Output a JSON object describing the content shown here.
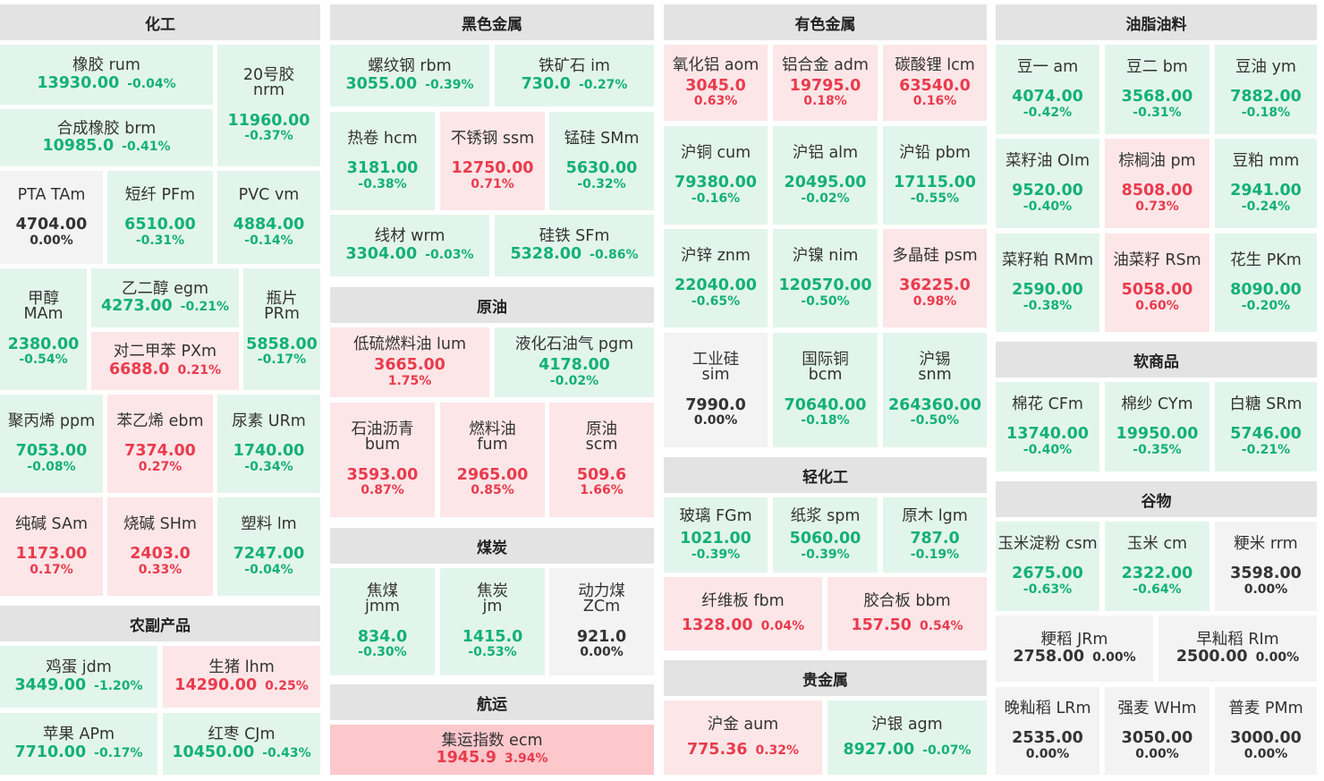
{
  "colors": {
    "up_bg": "#fde6e8",
    "down_bg": "#e2f5ec",
    "flat_bg": "#f3f3f3",
    "hot_bg": "#fcc8cc",
    "up_text": "#e93b4d",
    "down_text": "#13b079",
    "header_bg": "#e3e3e3"
  },
  "sections": {
    "chemical": "化工",
    "ferrous": "黑色金属",
    "nonferrous": "有色金属",
    "oils": "油脂油料",
    "agri": "农副产品",
    "crude": "原油",
    "coal": "煤炭",
    "shipping": "航运",
    "lightchem": "轻化工",
    "softs": "软商品",
    "grains": "谷物",
    "precious": "贵金属"
  },
  "t": {
    "rum": {
      "name": "橡胶 rum",
      "price": "13930.00",
      "change": "-0.04%"
    },
    "nrm": {
      "line1": "20号胶",
      "line2": "nrm",
      "price": "11960.00",
      "change": "-0.37%"
    },
    "brm": {
      "name": "合成橡胶 brm",
      "price": "10985.0",
      "change": "-0.41%"
    },
    "tam": {
      "name": "PTA TAm",
      "price": "4704.00",
      "change": "0.00%"
    },
    "pfm": {
      "name": "短纤 PFm",
      "price": "6510.00",
      "change": "-0.31%"
    },
    "vm": {
      "name": "PVC vm",
      "price": "4884.00",
      "change": "-0.14%"
    },
    "mam": {
      "line1": "甲醇",
      "line2": "MAm",
      "price": "2380.00",
      "change": "-0.54%"
    },
    "egm": {
      "name": "乙二醇 egm",
      "price": "4273.00",
      "change": "-0.21%"
    },
    "prm": {
      "line1": "瓶片",
      "line2": "PRm",
      "price": "5858.00",
      "change": "-0.17%"
    },
    "pxm": {
      "name": "对二甲苯 PXm",
      "price": "6688.0",
      "change": "0.21%"
    },
    "ppm": {
      "name": "聚丙烯 ppm",
      "price": "7053.00",
      "change": "-0.08%"
    },
    "ebm": {
      "name": "苯乙烯 ebm",
      "price": "7374.00",
      "change": "0.27%"
    },
    "urm": {
      "name": "尿素 URm",
      "price": "1740.00",
      "change": "-0.34%"
    },
    "sam": {
      "name": "纯碱 SAm",
      "price": "1173.00",
      "change": "0.17%"
    },
    "shm": {
      "name": "烧碱 SHm",
      "price": "2403.0",
      "change": "0.33%"
    },
    "lm": {
      "name": "塑料 lm",
      "price": "7247.00",
      "change": "-0.04%"
    },
    "jdm": {
      "name": "鸡蛋 jdm",
      "price": "3449.00",
      "change": "-1.20%"
    },
    "lhm": {
      "name": "生猪 lhm",
      "price": "14290.00",
      "change": "0.25%"
    },
    "apm": {
      "name": "苹果 APm",
      "price": "7710.00",
      "change": "-0.17%"
    },
    "cjm": {
      "name": "红枣 CJm",
      "price": "10450.00",
      "change": "-0.43%"
    },
    "rbm": {
      "name": "螺纹钢 rbm",
      "price": "3055.00",
      "change": "-0.39%"
    },
    "im": {
      "name": "铁矿石 im",
      "price": "730.0",
      "change": "-0.27%"
    },
    "hcm": {
      "name": "热卷 hcm",
      "price": "3181.00",
      "change": "-0.38%"
    },
    "ssm": {
      "name": "不锈钢 ssm",
      "price": "12750.00",
      "change": "0.71%"
    },
    "smm": {
      "name": "锰硅 SMm",
      "price": "5630.00",
      "change": "-0.32%"
    },
    "wrm": {
      "name": "线材 wrm",
      "price": "3304.00",
      "change": "-0.03%"
    },
    "sfm": {
      "name": "硅铁 SFm",
      "price": "5328.00",
      "change": "-0.86%"
    },
    "lum": {
      "name": "低硫燃料油 lum",
      "price": "3665.00",
      "change": "1.75%"
    },
    "pgm": {
      "name": "液化石油气 pgm",
      "price": "4178.00",
      "change": "-0.02%"
    },
    "bum": {
      "line1": "石油沥青",
      "line2": "bum",
      "price": "3593.00",
      "change": "0.87%"
    },
    "fum": {
      "line1": "燃料油",
      "line2": "fum",
      "price": "2965.00",
      "change": "0.85%"
    },
    "scm": {
      "line1": "原油",
      "line2": "scm",
      "price": "509.6",
      "change": "1.66%"
    },
    "jmm": {
      "line1": "焦煤",
      "line2": "jmm",
      "price": "834.0",
      "change": "-0.30%"
    },
    "jm": {
      "line1": "焦炭",
      "line2": "jm",
      "price": "1415.0",
      "change": "-0.53%"
    },
    "zcm": {
      "line1": "动力煤",
      "line2": "ZCm",
      "price": "921.0",
      "change": "0.00%"
    },
    "ecm": {
      "name": "集运指数 ecm",
      "price": "1945.9",
      "change": "3.94%"
    },
    "aom": {
      "name": "氧化铝 aom",
      "price": "3045.0",
      "change": "0.63%"
    },
    "adm": {
      "name": "铝合金 adm",
      "price": "19795.0",
      "change": "0.18%"
    },
    "lcm": {
      "name": "碳酸锂 lcm",
      "price": "63540.0",
      "change": "0.16%"
    },
    "cum": {
      "name": "沪铜 cum",
      "price": "79380.00",
      "change": "-0.16%"
    },
    "alm": {
      "name": "沪铝 alm",
      "price": "20495.00",
      "change": "-0.02%"
    },
    "pbm": {
      "name": "沪铅 pbm",
      "price": "17115.00",
      "change": "-0.55%"
    },
    "znm": {
      "name": "沪锌 znm",
      "price": "22040.00",
      "change": "-0.65%"
    },
    "nim": {
      "name": "沪镍 nim",
      "price": "120570.00",
      "change": "-0.50%"
    },
    "psm": {
      "name": "多晶硅 psm",
      "price": "36225.0",
      "change": "0.98%"
    },
    "sim": {
      "line1": "工业硅",
      "line2": "sim",
      "price": "7990.0",
      "change": "0.00%"
    },
    "bcm": {
      "line1": "国际铜",
      "line2": "bcm",
      "price": "70640.00",
      "change": "-0.18%"
    },
    "snm": {
      "line1": "沪锡",
      "line2": "snm",
      "price": "264360.00",
      "change": "-0.50%"
    },
    "fgm": {
      "name": "玻璃 FGm",
      "price": "1021.00",
      "change": "-0.39%"
    },
    "spm": {
      "name": "纸浆 spm",
      "price": "5060.00",
      "change": "-0.39%"
    },
    "lgm": {
      "name": "原木 lgm",
      "price": "787.0",
      "change": "-0.19%"
    },
    "fbm": {
      "name": "纤维板 fbm",
      "price": "1328.00",
      "change": "0.04%"
    },
    "bbm": {
      "name": "胶合板 bbm",
      "price": "157.50",
      "change": "0.54%"
    },
    "aum": {
      "name": "沪金 aum",
      "price": "775.36",
      "change": "0.32%"
    },
    "agm": {
      "name": "沪银 agm",
      "price": "8927.00",
      "change": "-0.07%"
    },
    "am": {
      "name": "豆一 am",
      "price": "4074.00",
      "change": "-0.42%"
    },
    "bm": {
      "name": "豆二 bm",
      "price": "3568.00",
      "change": "-0.31%"
    },
    "ym": {
      "name": "豆油 ym",
      "price": "7882.00",
      "change": "-0.18%"
    },
    "olm": {
      "name": "菜籽油 OIm",
      "price": "9520.00",
      "change": "-0.40%"
    },
    "pm": {
      "name": "棕榈油 pm",
      "price": "8508.00",
      "change": "0.73%"
    },
    "mm": {
      "name": "豆粕 mm",
      "price": "2941.00",
      "change": "-0.24%"
    },
    "rmm": {
      "name": "菜籽粕 RMm",
      "price": "2590.00",
      "change": "-0.38%"
    },
    "rsm": {
      "name": "油菜籽 RSm",
      "price": "5058.00",
      "change": "0.60%"
    },
    "pkm": {
      "name": "花生 PKm",
      "price": "8090.00",
      "change": "-0.20%"
    },
    "cfm": {
      "name": "棉花 CFm",
      "price": "13740.00",
      "change": "-0.40%"
    },
    "cym": {
      "name": "棉纱 CYm",
      "price": "19950.00",
      "change": "-0.35%"
    },
    "srm": {
      "name": "白糖 SRm",
      "price": "5746.00",
      "change": "-0.21%"
    },
    "csm": {
      "name": "玉米淀粉 csm",
      "price": "2675.00",
      "change": "-0.63%"
    },
    "cm": {
      "name": "玉米 cm",
      "price": "2322.00",
      "change": "-0.64%"
    },
    "rrm": {
      "name": "粳米 rrm",
      "price": "3598.00",
      "change": "0.00%"
    },
    "jrm": {
      "name": "粳稻 JRm",
      "price": "2758.00",
      "change": "0.00%"
    },
    "rim": {
      "name": "早籼稻 RIm",
      "price": "2500.00",
      "change": "0.00%"
    },
    "lrm": {
      "name": "晚籼稻 LRm",
      "price": "2535.00",
      "change": "0.00%"
    },
    "whm": {
      "name": "强麦 WHm",
      "price": "3050.00",
      "change": "0.00%"
    },
    "pmm": {
      "name": "普麦 PMm",
      "price": "3000.00",
      "change": "0.00%"
    }
  }
}
